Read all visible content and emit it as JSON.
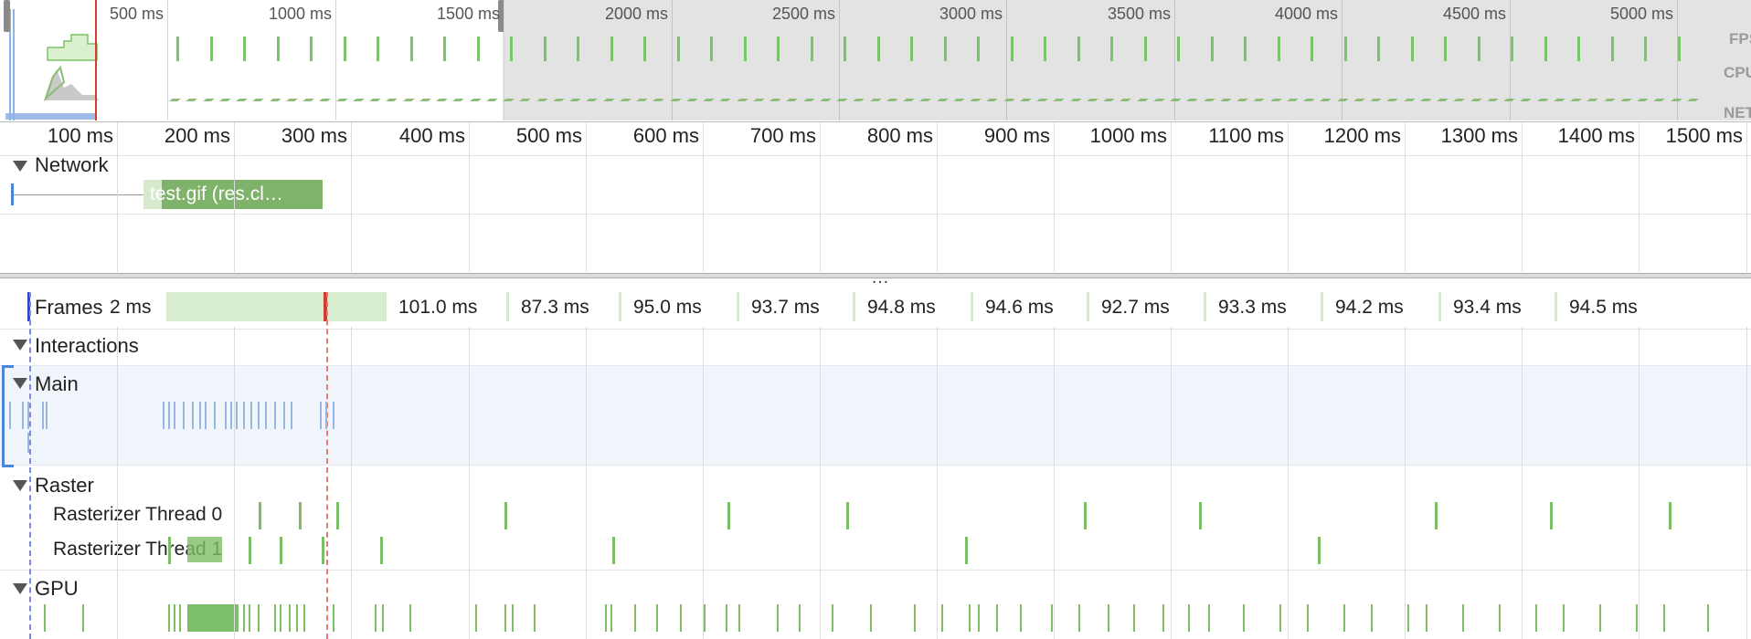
{
  "overview": {
    "ticks": [
      "500 ms",
      "1000 ms",
      "1500 ms",
      "2000 ms",
      "2500 ms",
      "3000 ms",
      "3500 ms",
      "4000 ms",
      "4500 ms",
      "5000 ms"
    ],
    "side_labels": [
      "FPS",
      "CPU",
      "NET"
    ]
  },
  "ruler": {
    "ticks": [
      "100 ms",
      "200 ms",
      "300 ms",
      "400 ms",
      "500 ms",
      "600 ms",
      "700 ms",
      "800 ms",
      "900 ms",
      "1000 ms",
      "1100 ms",
      "1200 ms",
      "1300 ms",
      "1400 ms",
      "1500 ms"
    ]
  },
  "network": {
    "label": "Network",
    "request_label": "test.gif (res.cl…"
  },
  "splitter": {
    "dots": "…"
  },
  "frames": {
    "label": "Frames",
    "first_partial": "2 ms",
    "durations": [
      "101.0 ms",
      "87.3 ms",
      "95.0 ms",
      "93.7 ms",
      "94.8 ms",
      "94.6 ms",
      "92.7 ms",
      "93.3 ms",
      "94.2 ms",
      "93.4 ms",
      "94.5 ms"
    ]
  },
  "tracks": {
    "interactions": "Interactions",
    "main": "Main",
    "raster": "Raster",
    "raster_threads": [
      "Rasterizer Thread 0",
      "Rasterizer Thread 1"
    ],
    "gpu": "GPU"
  },
  "colors": {
    "frame_green": "#7dbe68",
    "task_blue": "#98b4e0",
    "marker_red": "#d23b2f",
    "selection_blue": "#4c86d8"
  }
}
